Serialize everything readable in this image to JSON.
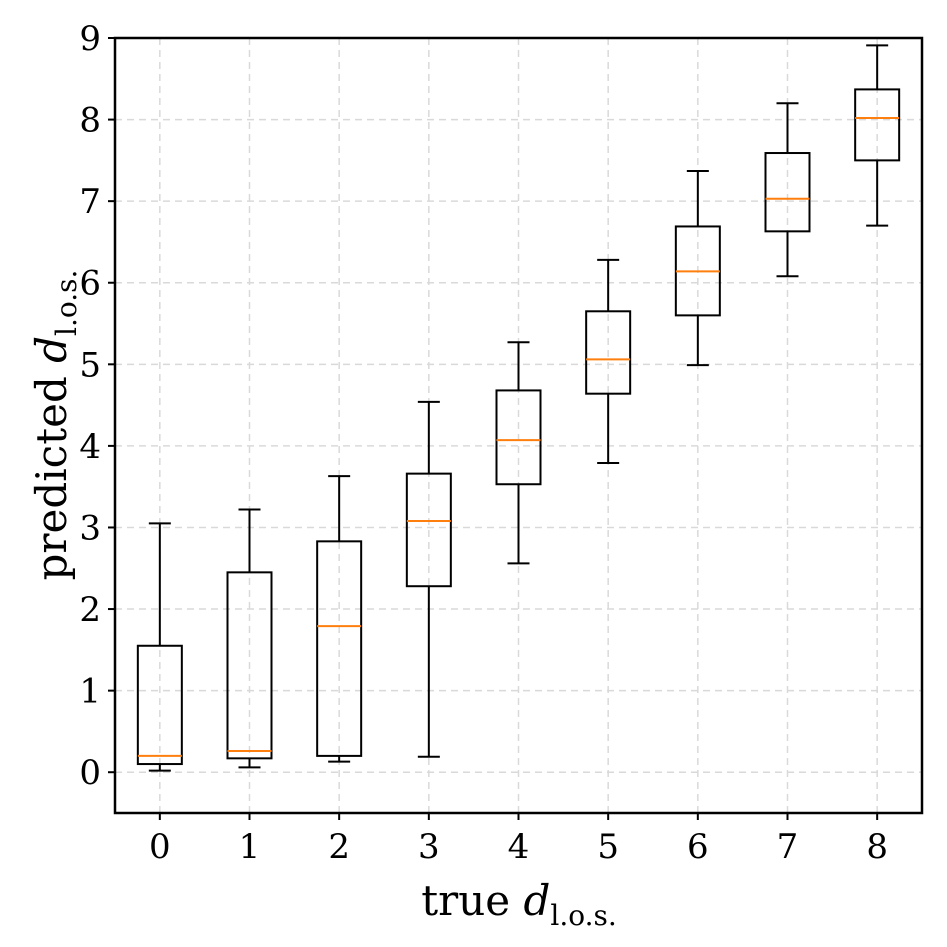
{
  "chart_data": {
    "type": "boxplot",
    "title": "",
    "xlabel": {
      "main": "true ",
      "var": "d",
      "sub": "l.o.s."
    },
    "ylabel": {
      "main": "predicted ",
      "var": "d",
      "sub": "l.o.s."
    },
    "categories": [
      "0",
      "1",
      "2",
      "3",
      "4",
      "5",
      "6",
      "7",
      "8"
    ],
    "ylim": [
      -0.5,
      9
    ],
    "yticks": [
      "0",
      "1",
      "2",
      "3",
      "4",
      "5",
      "6",
      "7",
      "8",
      "9"
    ],
    "grid": true,
    "colors": {
      "box": "#000000",
      "median": "#ff7f0e",
      "grid": "#d9d9d9"
    },
    "boxes": [
      {
        "x": 0,
        "whisker_low": 0.02,
        "q1": 0.1,
        "median": 0.2,
        "q3": 1.55,
        "whisker_high": 3.05
      },
      {
        "x": 1,
        "whisker_low": 0.06,
        "q1": 0.17,
        "median": 0.26,
        "q3": 2.45,
        "whisker_high": 3.22
      },
      {
        "x": 2,
        "whisker_low": 0.13,
        "q1": 0.2,
        "median": 1.79,
        "q3": 2.83,
        "whisker_high": 3.63
      },
      {
        "x": 3,
        "whisker_low": 0.19,
        "q1": 2.28,
        "median": 3.08,
        "q3": 3.66,
        "whisker_high": 4.54
      },
      {
        "x": 4,
        "whisker_low": 2.56,
        "q1": 3.53,
        "median": 4.07,
        "q3": 4.68,
        "whisker_high": 5.27
      },
      {
        "x": 5,
        "whisker_low": 3.79,
        "q1": 4.64,
        "median": 5.06,
        "q3": 5.65,
        "whisker_high": 6.28
      },
      {
        "x": 6,
        "whisker_low": 4.99,
        "q1": 5.6,
        "median": 6.14,
        "q3": 6.69,
        "whisker_high": 7.37
      },
      {
        "x": 7,
        "whisker_low": 6.08,
        "q1": 6.63,
        "median": 7.03,
        "q3": 7.59,
        "whisker_high": 8.2
      },
      {
        "x": 8,
        "whisker_low": 6.7,
        "q1": 7.5,
        "median": 8.02,
        "q3": 8.37,
        "whisker_high": 8.91
      }
    ]
  }
}
